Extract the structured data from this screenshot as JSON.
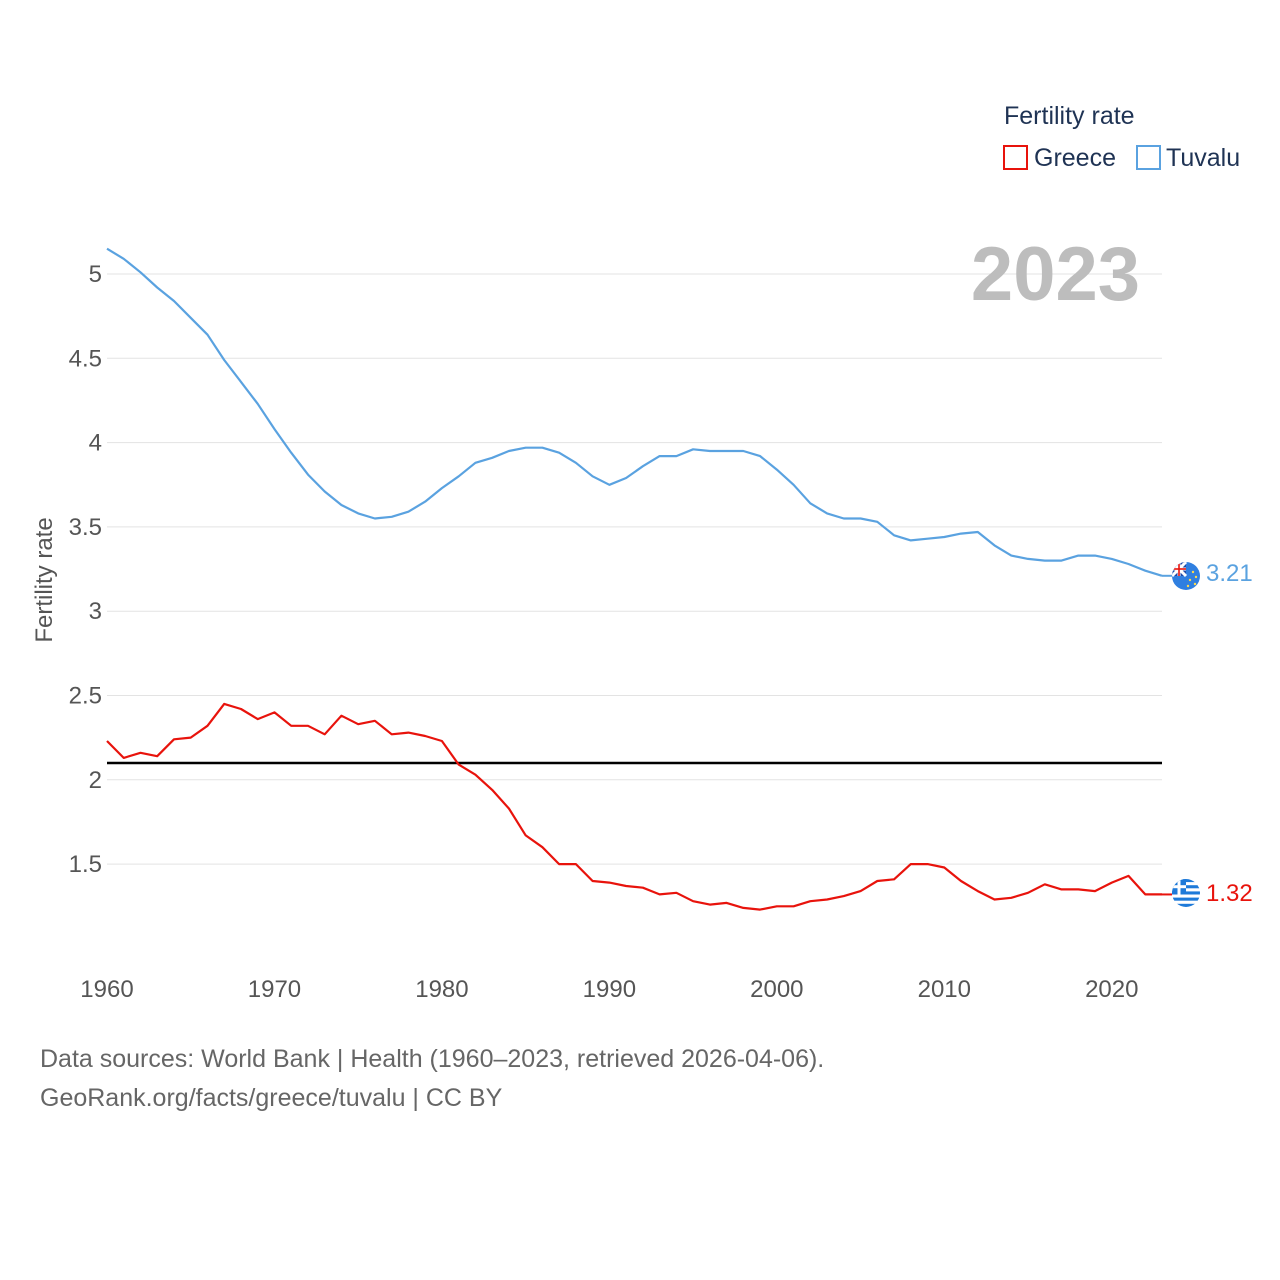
{
  "chart_data": {
    "type": "line",
    "ylabel": "Fertility rate",
    "year_label": "2023",
    "legend_title": "Fertility rate",
    "legend_position": "top-right",
    "x_ticks": [
      1960,
      1970,
      1980,
      1990,
      2000,
      2010,
      2020
    ],
    "y_ticks": [
      1.5,
      2,
      2.5,
      3,
      3.5,
      4,
      4.5,
      5
    ],
    "y_tick_labels": [
      "1.5",
      "2",
      "2.5",
      "3",
      "3.5",
      "4",
      "4.5",
      "5"
    ],
    "xlim": [
      1960,
      2023
    ],
    "ylim": [
      1.0,
      5.2
    ],
    "reference_line": 2.1,
    "x": [
      1960,
      1961,
      1962,
      1963,
      1964,
      1965,
      1966,
      1967,
      1968,
      1969,
      1970,
      1971,
      1972,
      1973,
      1974,
      1975,
      1976,
      1977,
      1978,
      1979,
      1980,
      1981,
      1982,
      1983,
      1984,
      1985,
      1986,
      1987,
      1988,
      1989,
      1990,
      1991,
      1992,
      1993,
      1994,
      1995,
      1996,
      1997,
      1998,
      1999,
      2000,
      2001,
      2002,
      2003,
      2004,
      2005,
      2006,
      2007,
      2008,
      2009,
      2010,
      2011,
      2012,
      2013,
      2014,
      2015,
      2016,
      2017,
      2018,
      2019,
      2020,
      2021,
      2022,
      2023
    ],
    "series": [
      {
        "name": "Greece",
        "color": "#e8130c",
        "end_label": "1.32",
        "flag": "greece-flag-icon",
        "values": [
          2.23,
          2.13,
          2.16,
          2.14,
          2.24,
          2.25,
          2.32,
          2.45,
          2.42,
          2.36,
          2.4,
          2.32,
          2.32,
          2.27,
          2.38,
          2.33,
          2.35,
          2.27,
          2.28,
          2.26,
          2.23,
          2.09,
          2.03,
          1.94,
          1.83,
          1.67,
          1.6,
          1.5,
          1.5,
          1.4,
          1.39,
          1.37,
          1.36,
          1.32,
          1.33,
          1.28,
          1.26,
          1.27,
          1.24,
          1.23,
          1.25,
          1.25,
          1.28,
          1.29,
          1.31,
          1.34,
          1.4,
          1.41,
          1.5,
          1.5,
          1.48,
          1.4,
          1.34,
          1.29,
          1.3,
          1.33,
          1.38,
          1.35,
          1.35,
          1.34,
          1.39,
          1.43,
          1.32,
          1.32
        ]
      },
      {
        "name": "Tuvalu",
        "color": "#5aa2e0",
        "end_label": "3.21",
        "flag": "tuvalu-flag-icon",
        "values": [
          5.15,
          5.09,
          5.01,
          4.92,
          4.84,
          4.74,
          4.64,
          4.49,
          4.36,
          4.23,
          4.08,
          3.94,
          3.81,
          3.71,
          3.63,
          3.58,
          3.55,
          3.56,
          3.59,
          3.65,
          3.73,
          3.8,
          3.88,
          3.91,
          3.95,
          3.97,
          3.97,
          3.94,
          3.88,
          3.8,
          3.75,
          3.79,
          3.86,
          3.92,
          3.92,
          3.96,
          3.95,
          3.95,
          3.95,
          3.92,
          3.84,
          3.75,
          3.64,
          3.58,
          3.55,
          3.55,
          3.53,
          3.45,
          3.42,
          3.43,
          3.44,
          3.46,
          3.47,
          3.39,
          3.33,
          3.31,
          3.3,
          3.3,
          3.33,
          3.33,
          3.31,
          3.28,
          3.24,
          3.21
        ]
      }
    ]
  },
  "footer": {
    "source": "Data sources: World Bank | Health (1960–2023, retrieved 2026-04-06).",
    "credit": "GeoRank.org/facts/greece/tuvalu | CC BY"
  }
}
